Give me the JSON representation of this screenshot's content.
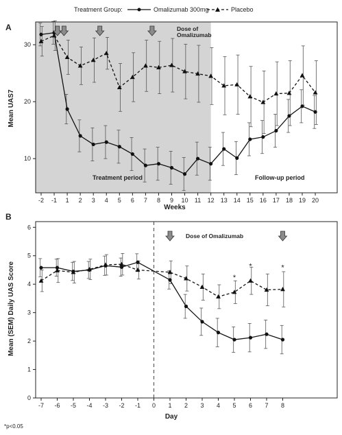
{
  "legend": {
    "heading": "Treatment Group:",
    "items": [
      {
        "label": "Omalizumab 300mg",
        "style": "solid",
        "marker": "circle"
      },
      {
        "label": "Placebo",
        "style": "dashed",
        "marker": "triangle"
      }
    ]
  },
  "footnote": "*p<0.05",
  "colors": {
    "line": "#111111",
    "shade": "#d4d4d4",
    "arrow_fill": "#8c8c8c",
    "errorbar": "#555555"
  },
  "chart_data": [
    {
      "panel_label": "A",
      "type": "line",
      "xlabel": "Weeks",
      "ylabel": "Mean UAS7",
      "x_ticks": [
        -2,
        -1,
        1,
        2,
        3,
        4,
        5,
        6,
        7,
        8,
        9,
        10,
        11,
        12,
        13,
        14,
        15,
        16,
        17,
        18,
        19,
        20
      ],
      "y_ticks": [
        10,
        20,
        30
      ],
      "ylim": [
        4,
        34
      ],
      "shaded_region": {
        "x_from": -2,
        "x_to": 12,
        "label": "Treatment period"
      },
      "region_labels": [
        "Treatment period",
        "Follow-up period"
      ],
      "dose_annotation": "Dose of Omalizumab",
      "dose_arrows_x": [
        -0.5,
        0.5,
        3.5,
        7.5
      ],
      "series": [
        {
          "name": "Omalizumab 300mg",
          "style": "solid",
          "marker": "circle",
          "x": [
            -2,
            -1,
            1,
            2,
            3,
            4,
            5,
            6,
            7,
            8,
            9,
            10,
            11,
            12,
            13,
            14,
            15,
            16,
            17,
            18,
            19,
            20
          ],
          "values": [
            31.8,
            32.1,
            18.7,
            14.0,
            12.5,
            12.9,
            12.1,
            10.8,
            8.8,
            9.1,
            8.4,
            7.3,
            10.0,
            9.1,
            11.7,
            10.1,
            13.4,
            13.8,
            14.9,
            17.5,
            19.2,
            18.2
          ],
          "error": [
            2.0,
            2.0,
            2.6,
            2.8,
            2.9,
            2.9,
            2.9,
            2.9,
            2.9,
            2.9,
            2.9,
            2.9,
            2.9,
            2.9,
            2.9,
            2.9,
            2.9,
            2.9,
            2.9,
            2.9,
            2.9,
            2.9
          ]
        },
        {
          "name": "Placebo",
          "style": "dashed",
          "marker": "triangle",
          "x": [
            -2,
            -1,
            1,
            2,
            3,
            4,
            5,
            6,
            7,
            8,
            9,
            10,
            11,
            12,
            13,
            14,
            15,
            16,
            17,
            18,
            19,
            20
          ],
          "values": [
            30.6,
            31.6,
            27.8,
            26.3,
            27.3,
            28.5,
            22.5,
            24.3,
            26.3,
            26.0,
            26.4,
            25.3,
            24.9,
            24.5,
            22.8,
            23.0,
            20.9,
            19.9,
            21.4,
            21.5,
            24.6,
            21.6
          ],
          "error": [
            2.6,
            2.6,
            3.0,
            3.3,
            3.9,
            2.8,
            4.2,
            4.3,
            4.5,
            4.6,
            4.7,
            4.8,
            5.0,
            5.0,
            5.1,
            5.2,
            5.3,
            5.5,
            5.6,
            5.7,
            5.2,
            5.6
          ]
        }
      ]
    },
    {
      "panel_label": "B",
      "type": "line",
      "xlabel": "Day",
      "ylabel": "Mean (SEM) Daily UAS Score",
      "x_ticks": [
        -7,
        -6,
        -5,
        -4,
        -3,
        -2,
        -1,
        0,
        1,
        2,
        3,
        4,
        5,
        6,
        7,
        8
      ],
      "y_ticks": [
        0,
        1,
        2,
        3,
        4,
        5,
        6
      ],
      "ylim": [
        0,
        6.2
      ],
      "vline_x": 0,
      "dose_annotation": "Dose of Omalizumab",
      "dose_arrows_x": [
        1,
        8
      ],
      "significance_marks": [
        {
          "x": 5,
          "y": 4.25,
          "text": "*"
        },
        {
          "x": 6,
          "y": 4.65,
          "text": "*"
        },
        {
          "x": 8,
          "y": 4.6,
          "text": "*"
        }
      ],
      "series": [
        {
          "name": "Omalizumab 300mg",
          "style": "solid",
          "marker": "circle",
          "x": [
            -7,
            -6,
            -5,
            -4,
            -3,
            -2,
            -1,
            1,
            2,
            3,
            4,
            5,
            6,
            7,
            8
          ],
          "values": [
            4.58,
            4.58,
            4.45,
            4.5,
            4.65,
            4.6,
            4.77,
            4.15,
            3.22,
            2.68,
            2.3,
            2.05,
            2.12,
            2.24,
            2.05
          ],
          "error": [
            0.32,
            0.3,
            0.32,
            0.3,
            0.34,
            0.32,
            0.3,
            0.32,
            0.42,
            0.48,
            0.5,
            0.45,
            0.5,
            0.5,
            0.5
          ]
        },
        {
          "name": "Placebo",
          "style": "dashed",
          "marker": "triangle",
          "x": [
            -7,
            -6,
            -5,
            -4,
            -3,
            -2,
            -1,
            1,
            2,
            3,
            4,
            5,
            6,
            7,
            8
          ],
          "values": [
            4.12,
            4.48,
            4.42,
            4.52,
            4.68,
            4.7,
            4.5,
            4.42,
            4.2,
            3.9,
            3.56,
            3.72,
            4.12,
            3.8,
            3.82
          ],
          "error": [
            0.38,
            0.42,
            0.38,
            0.36,
            0.36,
            0.38,
            0.32,
            0.4,
            0.44,
            0.46,
            0.42,
            0.4,
            0.48,
            0.56,
            0.62
          ]
        }
      ]
    }
  ]
}
